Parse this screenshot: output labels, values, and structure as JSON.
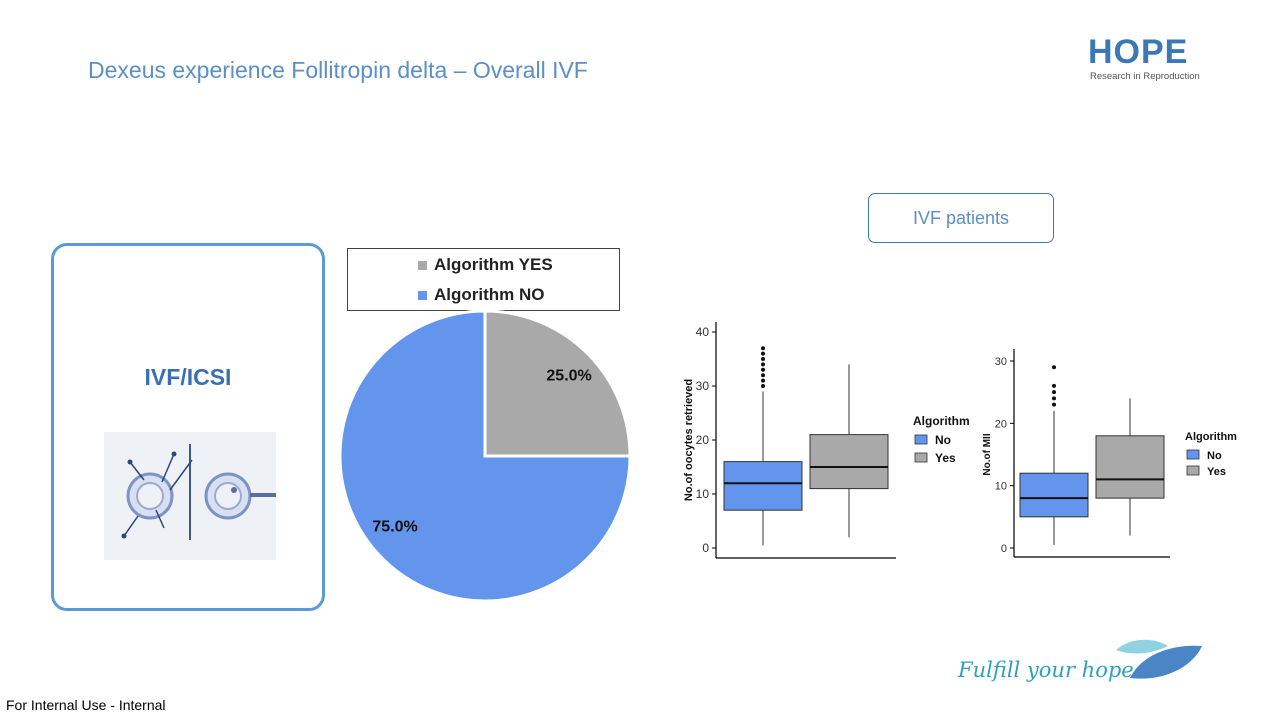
{
  "slide": {
    "title": "Dexeus experience Follitropin delta – Overall IVF",
    "logo_word": "HOPE",
    "logo_sub": "Research in Reproduction",
    "ivf_box_label": "IVF/ICSI",
    "patients_label": "IVF patients",
    "footer": "For Internal Use - Internal",
    "tagline": "Fulfill your hope",
    "colors": {
      "accent": "#5b8fc6",
      "no": "#6495ed",
      "yes": "#a9a9a9"
    }
  },
  "chart_data": [
    {
      "type": "pie",
      "categories": [
        "Algorithm YES",
        "Algorithm NO"
      ],
      "values": [
        25.0,
        75.0
      ],
      "labels": [
        "25.0%",
        "75.0%"
      ],
      "colors": [
        "#a9a9a9",
        "#6495ed"
      ],
      "legend": "top"
    },
    {
      "type": "box",
      "ylabel": "No.of oocytes retrieved",
      "ylim": [
        0,
        40
      ],
      "yticks": [
        0,
        10,
        20,
        30,
        40
      ],
      "legend_title": "Algorithm",
      "legend": "right",
      "series": [
        {
          "name": "No",
          "color": "#6495ed",
          "min": 0.5,
          "q1": 7,
          "median": 12,
          "q3": 16,
          "max": 29,
          "outliers": [
            30,
            31,
            32,
            33,
            34,
            35,
            36,
            37
          ]
        },
        {
          "name": "Yes",
          "color": "#a9a9a9",
          "min": 2,
          "q1": 11,
          "median": 15,
          "q3": 21,
          "max": 34,
          "outliers": []
        }
      ]
    },
    {
      "type": "box",
      "ylabel": "No.of MII",
      "ylim": [
        0,
        30
      ],
      "yticks": [
        0,
        10,
        20,
        30
      ],
      "legend_title": "Algorithm",
      "legend": "right",
      "series": [
        {
          "name": "No",
          "color": "#6495ed",
          "min": 0.5,
          "q1": 5,
          "median": 8,
          "q3": 12,
          "max": 22,
          "outliers": [
            23,
            24,
            25,
            26,
            29
          ]
        },
        {
          "name": "Yes",
          "color": "#a9a9a9",
          "min": 2,
          "q1": 8,
          "median": 11,
          "q3": 18,
          "max": 24,
          "outliers": []
        }
      ]
    }
  ]
}
